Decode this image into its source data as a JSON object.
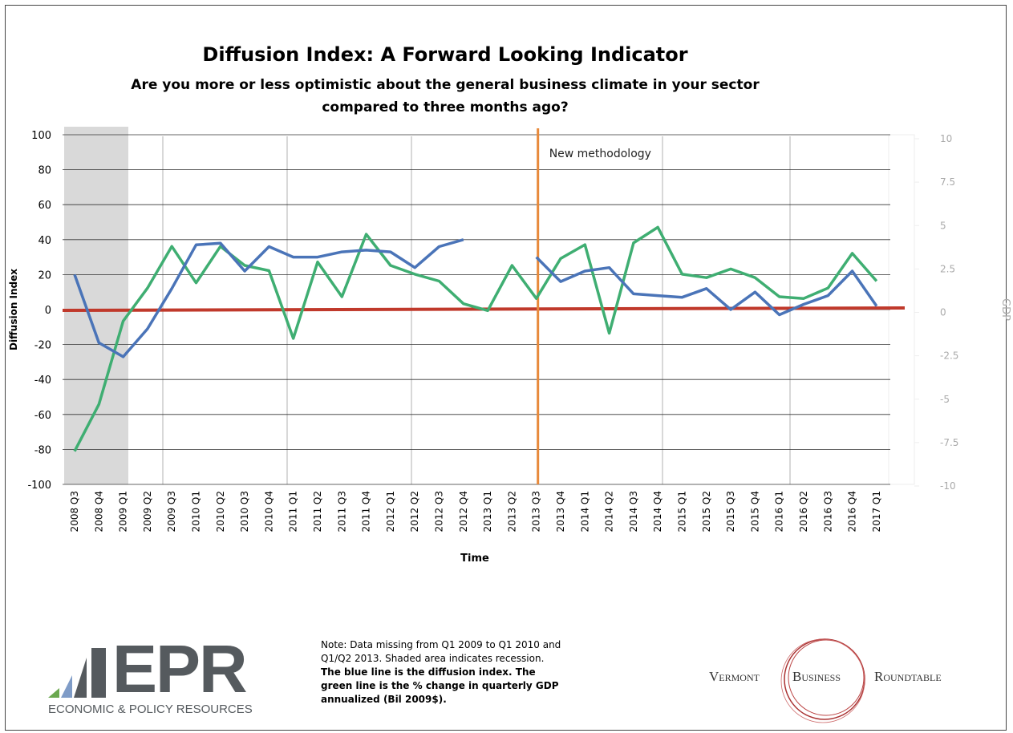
{
  "chart_data": {
    "type": "line",
    "title": "Diffusion Index: A Forward Looking Indicator",
    "subtitle": "Are you more or less optimistic about the general business climate in your sector compared to three months ago?",
    "xlabel": "Time",
    "ylabel": "Diffusion Index",
    "y2label": "GDP",
    "annotation": "New methodology",
    "annotation_category": "2013 Q3",
    "categories": [
      "2008 Q3",
      "2008 Q4",
      "2009 Q1",
      "2009 Q2",
      "2009 Q3",
      "2010 Q1",
      "2010 Q2",
      "2010 Q3",
      "2010 Q4",
      "2011 Q1",
      "2011 Q2",
      "2011 Q3",
      "2011 Q4",
      "2012 Q1",
      "2012 Q2",
      "2012 Q3",
      "2012 Q4",
      "2013 Q1",
      "2013 Q2",
      "2013 Q3",
      "2013 Q4",
      "2014 Q1",
      "2014 Q2",
      "2014 Q3",
      "2014 Q4",
      "2015 Q1",
      "2015 Q2",
      "2015 Q3",
      "2015 Q4",
      "2016 Q1",
      "2016 Q2",
      "2016 Q3",
      "2016 Q4",
      "2017 Q1"
    ],
    "series": [
      {
        "name": "Diffusion Index",
        "color": "#4a74b8",
        "values": [
          20,
          -19,
          -27,
          -11,
          12,
          37,
          38,
          22,
          36,
          30,
          30,
          33,
          34,
          33,
          24,
          36,
          40,
          null,
          null,
          30,
          16,
          22,
          24,
          9,
          8,
          7,
          12,
          0,
          10,
          -3,
          3,
          8,
          22,
          2
        ]
      },
      {
        "name": "GDP",
        "color": "#3fae72",
        "axis": "y2",
        "values": [
          -8.0,
          -5.3,
          -0.5,
          1.4,
          3.8,
          1.7,
          3.8,
          2.7,
          2.4,
          -1.5,
          2.9,
          0.9,
          4.5,
          2.7,
          2.2,
          1.8,
          0.5,
          0.1,
          2.7,
          0.8,
          3.1,
          3.9,
          -1.2,
          4.0,
          4.9,
          2.2,
          2.0,
          2.5,
          2.0,
          0.9,
          0.8,
          1.4,
          3.4,
          1.8
        ]
      }
    ],
    "ylim": [
      -100,
      100
    ],
    "yticks": [
      -100,
      -80,
      -60,
      -40,
      -20,
      0,
      20,
      40,
      60,
      80,
      100
    ],
    "y2lim": [
      -10,
      10
    ],
    "y2ticks": [
      -10,
      -7.5,
      -5,
      -2.5,
      0,
      2.5,
      5,
      7.5,
      10
    ],
    "grid": true
  },
  "footer": {
    "note": "Note:  Data missing from  Q1 2009 to Q1 2010 and Q1/Q2 2013. Shaded area indicates  recession.",
    "note_bold": "The blue line is the diffusion index.  The green line is the % change in quarterly GDP annualized (Bil 2009$).",
    "epr_logo": "EPR",
    "epr_name": "ECONOMIC & POLICY RESOURCES",
    "vbr_1": "Vermont",
    "vbr_2": "Business",
    "vbr_3": "Roundtable"
  }
}
